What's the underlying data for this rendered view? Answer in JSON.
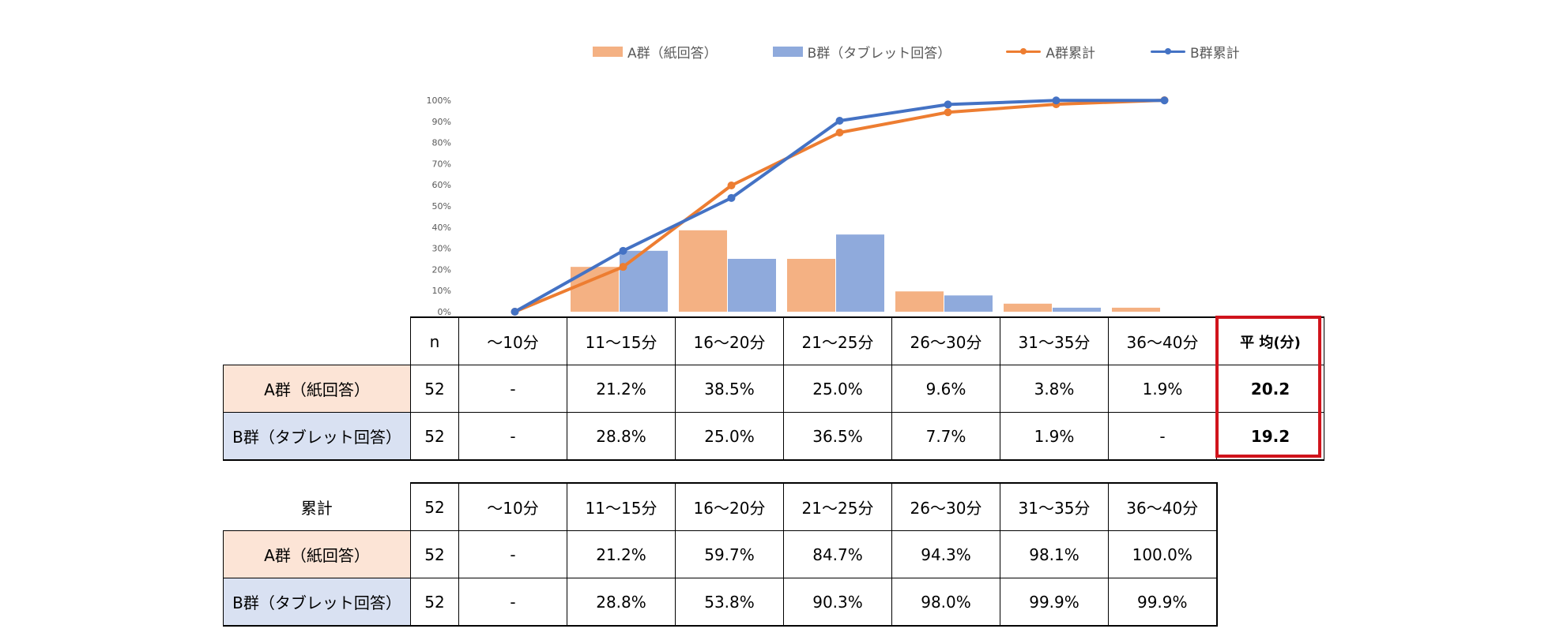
{
  "chart_data": {
    "type": "bar+line",
    "categories": [
      "～10分",
      "11～15分",
      "16～20分",
      "21～25分",
      "26～30分",
      "31～35分",
      "36～40分"
    ],
    "series": [
      {
        "name": "A群（紙回答）",
        "kind": "bar",
        "color": "#f4b183",
        "values": [
          0,
          21.2,
          38.5,
          25.0,
          9.6,
          3.8,
          1.9
        ]
      },
      {
        "name": "B群（タブレット回答）",
        "kind": "bar",
        "color": "#8faadc",
        "values": [
          0,
          28.8,
          25.0,
          36.5,
          7.7,
          1.9,
          0
        ]
      },
      {
        "name": "A群累計",
        "kind": "line",
        "color": "#ed7d31",
        "values": [
          0,
          21.2,
          59.7,
          84.7,
          94.3,
          98.1,
          100.0
        ]
      },
      {
        "name": "B群累計",
        "kind": "line",
        "color": "#4472c4",
        "values": [
          0,
          28.8,
          53.8,
          90.3,
          98.0,
          99.9,
          99.9
        ]
      }
    ],
    "y_ticks": [
      "0%",
      "10%",
      "20%",
      "30%",
      "40%",
      "50%",
      "60%",
      "70%",
      "80%",
      "90%",
      "100%"
    ],
    "ylim": [
      0,
      100
    ],
    "legend_position": "top"
  },
  "table1": {
    "header": [
      "n",
      "～10分",
      "11～15分",
      "16～20分",
      "21～25分",
      "26～30分",
      "31～35分",
      "36～40分",
      "平 均(分)"
    ],
    "rows": [
      {
        "label": "A群（紙回答）",
        "n": "52",
        "cells": [
          "-",
          "21.2%",
          "38.5%",
          "25.0%",
          "9.6%",
          "3.8%",
          "1.9%"
        ],
        "avg": "20.2"
      },
      {
        "label": "B群（タブレット回答）",
        "n": "52",
        "cells": [
          "-",
          "28.8%",
          "25.0%",
          "36.5%",
          "7.7%",
          "1.9%",
          "-"
        ],
        "avg": "19.2"
      }
    ]
  },
  "table2": {
    "title": "累計",
    "header_n": "52",
    "header": [
      "～10分",
      "11～15分",
      "16～20分",
      "21～25分",
      "26～30分",
      "31～35分",
      "36～40分"
    ],
    "rows": [
      {
        "label": "A群（紙回答）",
        "n": "52",
        "cells": [
          "-",
          "21.2%",
          "59.7%",
          "84.7%",
          "94.3%",
          "98.1%",
          "100.0%"
        ]
      },
      {
        "label": "B群（タブレット回答）",
        "n": "52",
        "cells": [
          "-",
          "28.8%",
          "53.8%",
          "90.3%",
          "98.0%",
          "99.9%",
          "99.9%"
        ]
      }
    ]
  }
}
